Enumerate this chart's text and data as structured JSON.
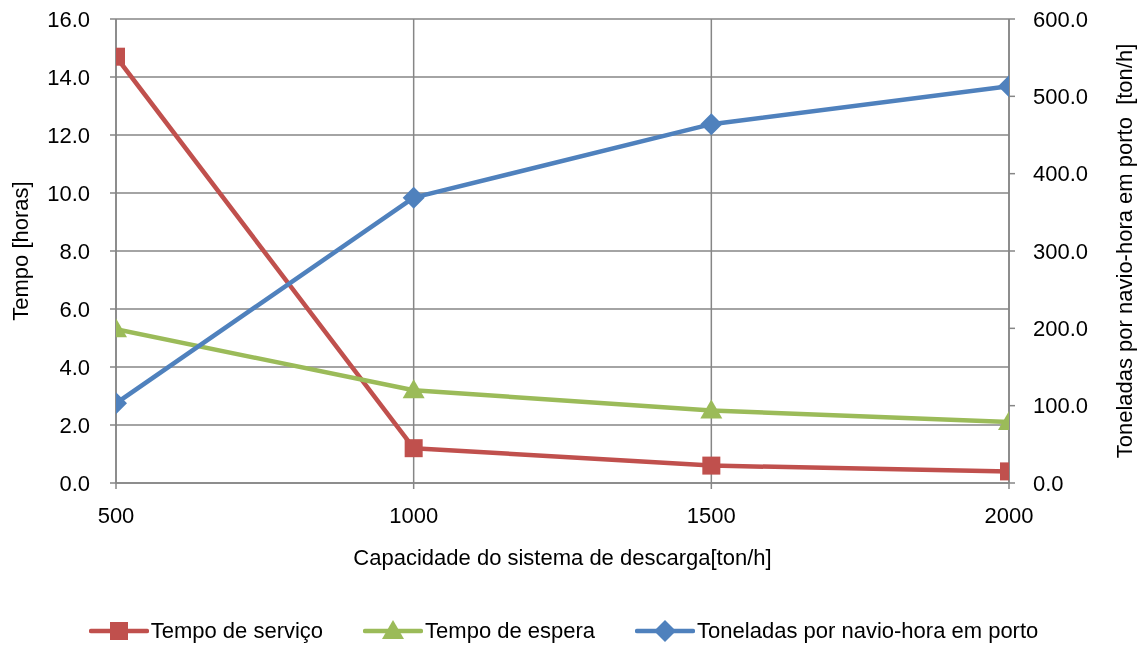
{
  "chart_data": {
    "type": "line",
    "xlabel": "Capacidade do sistema de descarga[ton/h]",
    "ylabel": "Tempo [horas]",
    "y2label": "Toneladas por navio-hora em porto  [ton/h]",
    "x": [
      500,
      1000,
      1500,
      2000
    ],
    "xlim": [
      500,
      2000
    ],
    "xticks": [
      500,
      1000,
      1500,
      2000
    ],
    "ylim": [
      0,
      16
    ],
    "yticks": [
      {
        "value": 0,
        "label": "0.0"
      },
      {
        "value": 2,
        "label": "2.0"
      },
      {
        "value": 4,
        "label": "4.0"
      },
      {
        "value": 6,
        "label": "6.0"
      },
      {
        "value": 8,
        "label": "8.0"
      },
      {
        "value": 10,
        "label": "10.0"
      },
      {
        "value": 12,
        "label": "12.0"
      },
      {
        "value": 14,
        "label": "14.0"
      },
      {
        "value": 16,
        "label": "16.0"
      }
    ],
    "y2lim": [
      0,
      600
    ],
    "y2ticks": [
      {
        "value": 0,
        "label": "0.0"
      },
      {
        "value": 100,
        "label": "100.0"
      },
      {
        "value": 200,
        "label": "200.0"
      },
      {
        "value": 300,
        "label": "300.0"
      },
      {
        "value": 400,
        "label": "400.0"
      },
      {
        "value": 500,
        "label": "500.0"
      },
      {
        "value": 600,
        "label": "600.0"
      }
    ],
    "series": [
      {
        "name": "Tempo de serviço",
        "color": "#c0504d",
        "marker": "square",
        "values": [
          14.7,
          1.2,
          0.6,
          0.4
        ]
      },
      {
        "name": "Tempo de espera",
        "color": "#9bbb59",
        "marker": "triangle",
        "values": [
          5.3,
          3.2,
          2.5,
          2.1
        ]
      },
      {
        "name": "Toneladas por navio-hora em porto",
        "color": "#4f81bd",
        "marker": "diamond",
        "axis": "y2",
        "values": [
          103,
          369,
          464,
          513
        ]
      }
    ],
    "grid": true,
    "legend": "bottom"
  }
}
